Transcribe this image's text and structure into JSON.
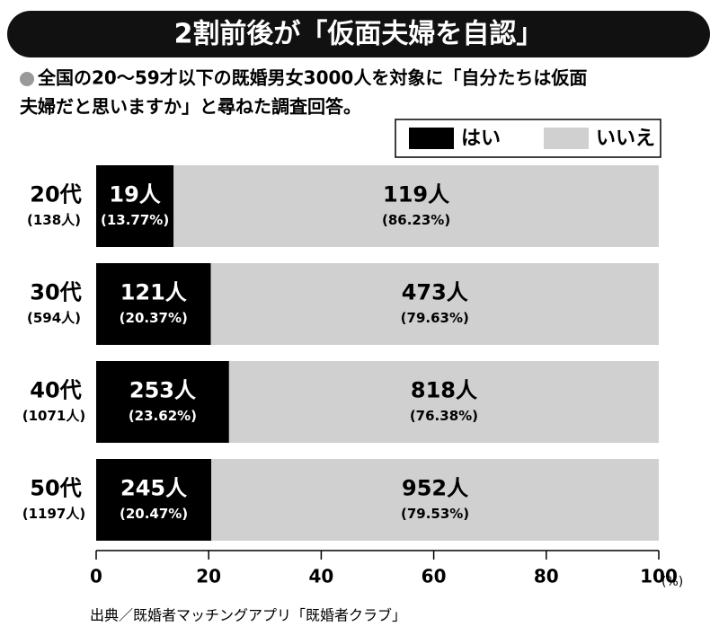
{
  "chart_data": {
    "type": "stacked_barh",
    "title": "2割前後が「仮面夫婦を自認」",
    "subtitle": [
      "全国の20～59才以下の既婚男女3000人を対象に「自分たちは仮面",
      "夫婦だと思いますか」と尋ねた調査回答。"
    ],
    "categories": [
      "20代",
      "30代",
      "40代",
      "50代"
    ],
    "category_notes": [
      "(138人)",
      "(594人)",
      "(1071人)",
      "(1197人)"
    ],
    "series": [
      {
        "name": "はい",
        "color": "#000000",
        "values": [
          13.77,
          20.37,
          23.62,
          20.47
        ],
        "value_labels": [
          "(13.77%)",
          "(20.37%)",
          "(23.62%)",
          "(20.47%)"
        ],
        "count_labels": [
          "19人",
          "121人",
          "253人",
          "245人"
        ]
      },
      {
        "name": "いいえ",
        "color": "#d0d0d0",
        "values": [
          86.23,
          79.63,
          76.38,
          79.53
        ],
        "value_labels": [
          "(86.23%)",
          "(79.63%)",
          "(76.38%)",
          "(79.53%)"
        ],
        "count_labels": [
          "119人",
          "473人",
          "818人",
          "952人"
        ]
      }
    ],
    "xlim": [
      0,
      100
    ],
    "xticks": [
      0,
      20,
      40,
      60,
      80,
      100
    ],
    "x_unit": "(%)",
    "source": "出典／既婚者マッチングアプリ「既婚者クラブ」"
  }
}
